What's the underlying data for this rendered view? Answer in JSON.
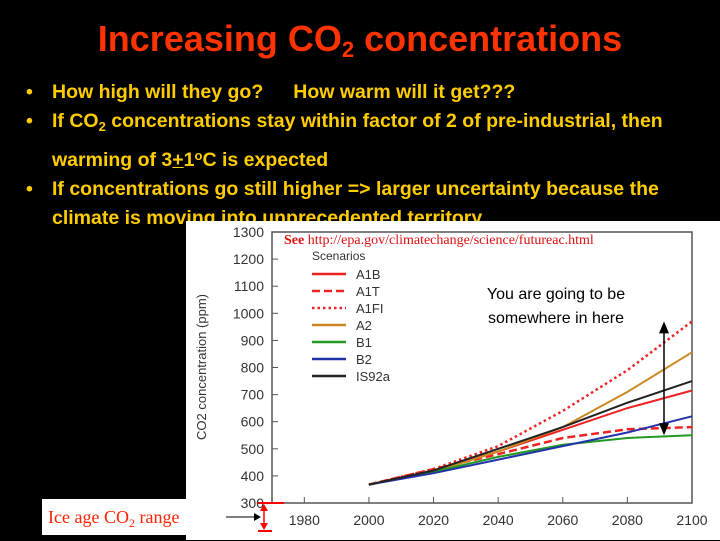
{
  "title": {
    "main": "Increasing CO",
    "sub": "2",
    "rest": " concentrations"
  },
  "bullets": [
    {
      "q1": "How high will they go?",
      "q2": "How warm will it get???"
    },
    {
      "a": "If CO",
      "sub": "2",
      "b": " concentrations stay within factor of 2 of pre-industrial, then warming of 3",
      "pm": "+",
      "c": "1",
      "sup": "o",
      "d": "C is expected"
    },
    {
      "text": "If concentrations go still higher => larger uncertainty because the climate is moving into unprecedented territory"
    }
  ],
  "source": {
    "see": "See",
    "url": "http://epa.gov/climatechange/science/futureac.html"
  },
  "annotation": {
    "line1": "You are going to be",
    "line2": "somewhere in here"
  },
  "ice_age": {
    "a": "Ice age CO",
    "sub": "2",
    "b": " range"
  },
  "colors": {
    "title": "#ff3300",
    "bullets": "#ffcc00",
    "background": "#000000"
  },
  "chart_data": {
    "type": "line",
    "ylabel": "CO2 concentration (ppm)",
    "legend_title": "Scenarios",
    "legend_position": "top-left",
    "xlim": [
      1970,
      2100
    ],
    "ylim": [
      300,
      1300
    ],
    "xticks": [
      1980,
      2000,
      2020,
      2040,
      2060,
      2080,
      2100
    ],
    "yticks": [
      300,
      400,
      500,
      600,
      700,
      800,
      900,
      1000,
      1100,
      1200,
      1300
    ],
    "x": [
      2000,
      2020,
      2040,
      2060,
      2080,
      2100
    ],
    "series": [
      {
        "name": "A1B",
        "color": "#ee2222",
        "dash": "solid",
        "values": [
          368,
          420,
          490,
          570,
          650,
          715
        ]
      },
      {
        "name": "A1T",
        "color": "#ee2222",
        "dash": "dashed",
        "values": [
          368,
          425,
          480,
          540,
          572,
          580
        ]
      },
      {
        "name": "A1FI",
        "color": "#ee2222",
        "dash": "dotted",
        "values": [
          368,
          425,
          510,
          640,
          790,
          970
        ]
      },
      {
        "name": "A2",
        "color": "#cc8822",
        "dash": "solid",
        "values": [
          368,
          415,
          490,
          580,
          710,
          856
        ]
      },
      {
        "name": "B1",
        "color": "#229922",
        "dash": "solid",
        "values": [
          368,
          415,
          470,
          515,
          540,
          550
        ]
      },
      {
        "name": "B2",
        "color": "#2233aa",
        "dash": "solid",
        "values": [
          368,
          410,
          460,
          510,
          560,
          620
        ]
      },
      {
        "name": "IS92a",
        "color": "#222222",
        "dash": "solid",
        "values": [
          368,
          420,
          500,
          580,
          670,
          750
        ]
      }
    ],
    "ice_age_range": [
      185,
      300
    ]
  }
}
